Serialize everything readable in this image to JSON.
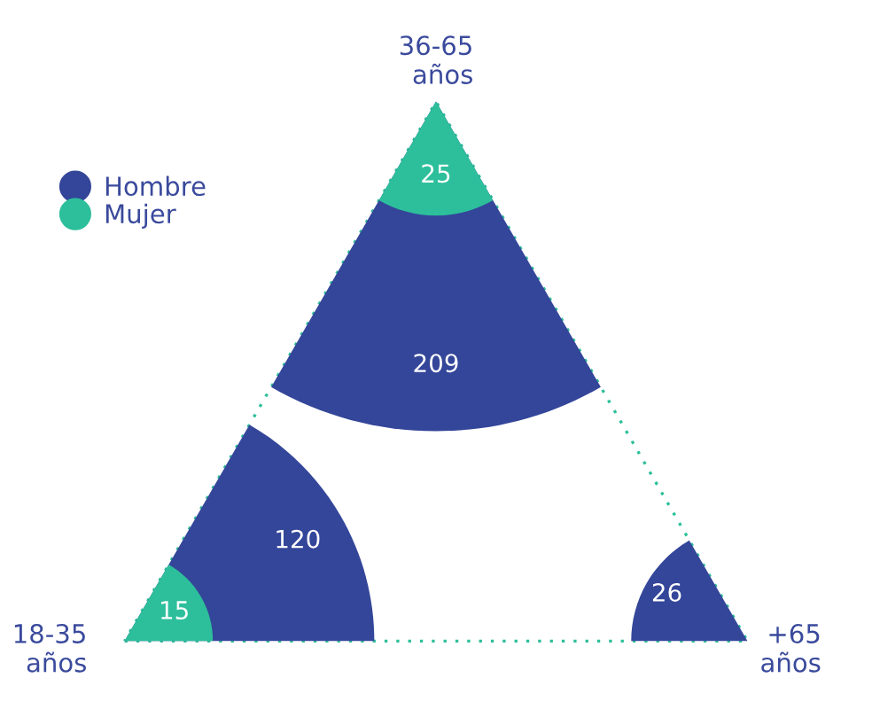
{
  "chart_data": {
    "type": "other",
    "categories": [
      "18-35 años",
      "36-65 años",
      "+65 años"
    ],
    "series": [
      {
        "name": "Hombre",
        "color": "#344699",
        "values": [
          120,
          209,
          26
        ]
      },
      {
        "name": "Mujer",
        "color": "#2dbf9b",
        "values": [
          15,
          25,
          null
        ]
      }
    ],
    "legend": "top left",
    "data_labels": true
  }
}
